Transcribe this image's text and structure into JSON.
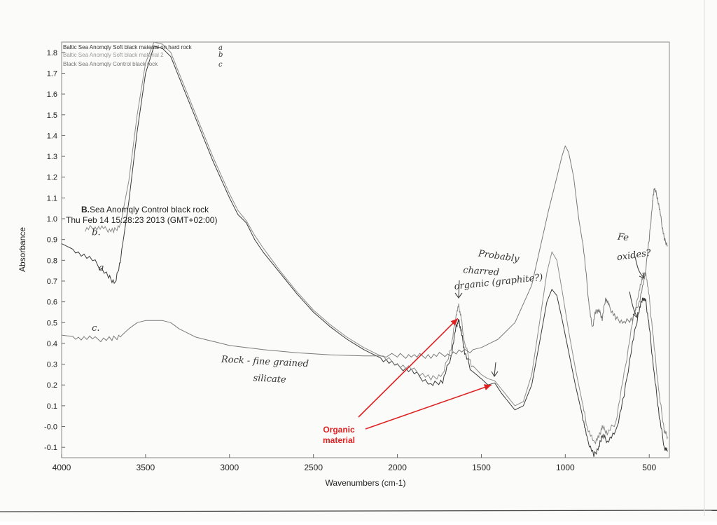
{
  "chart_data": {
    "type": "line",
    "xlabel": "Wavenumbers (cm-1)",
    "ylabel": "Absorbance",
    "xlim": [
      4000,
      380
    ],
    "ylim": [
      -0.15,
      1.85
    ],
    "x_reversed": true,
    "xticks": [
      4000,
      3500,
      3000,
      2500,
      2000,
      1500,
      1000,
      500
    ],
    "yticks": [
      -0.1,
      -0.0,
      0.1,
      0.2,
      0.3,
      0.4,
      0.5,
      0.6,
      0.7,
      0.8,
      0.9,
      1.0,
      1.1,
      1.2,
      1.3,
      1.4,
      1.5,
      1.6,
      1.7,
      1.8
    ],
    "grid": false,
    "legend_position": "top-left",
    "legend": [
      {
        "text": "Baltic Sea Anomqly Soft black material on hard rock",
        "mark": "a",
        "color": "#333333"
      },
      {
        "text": "Baltic Sea Anomqly Soft black material 2",
        "mark": "b",
        "color": "#9a9a9a"
      },
      {
        "text": "Black Sea Anomqly Control black rock",
        "mark": "c",
        "color": "#6f6f6f"
      }
    ],
    "info_title_prefix": "B.",
    "info_title_rest": "Sea Anomqly Control black rock",
    "info_timestamp": "Thu Feb 14 15:28:23 2013 (GMT+02:00)",
    "series": [
      {
        "mark": "a",
        "color": "#3a3a3a",
        "points": [
          [
            4000,
            0.88
          ],
          [
            3900,
            0.84
          ],
          [
            3800,
            0.79
          ],
          [
            3720,
            0.72
          ],
          [
            3680,
            0.69
          ],
          [
            3650,
            0.8
          ],
          [
            3600,
            1.08
          ],
          [
            3550,
            1.42
          ],
          [
            3500,
            1.7
          ],
          [
            3450,
            1.83
          ],
          [
            3400,
            1.82
          ],
          [
            3350,
            1.78
          ],
          [
            3300,
            1.68
          ],
          [
            3200,
            1.48
          ],
          [
            3100,
            1.28
          ],
          [
            3000,
            1.1
          ],
          [
            2950,
            1.02
          ],
          [
            2900,
            0.98
          ],
          [
            2850,
            0.9
          ],
          [
            2800,
            0.84
          ],
          [
            2700,
            0.74
          ],
          [
            2600,
            0.64
          ],
          [
            2500,
            0.55
          ],
          [
            2400,
            0.48
          ],
          [
            2300,
            0.42
          ],
          [
            2200,
            0.37
          ],
          [
            2100,
            0.33
          ],
          [
            2000,
            0.29
          ],
          [
            1900,
            0.26
          ],
          [
            1800,
            0.2
          ],
          [
            1730,
            0.22
          ],
          [
            1680,
            0.34
          ],
          [
            1650,
            0.48
          ],
          [
            1635,
            0.51
          ],
          [
            1620,
            0.46
          ],
          [
            1600,
            0.36
          ],
          [
            1560,
            0.27
          ],
          [
            1500,
            0.23
          ],
          [
            1460,
            0.2
          ],
          [
            1420,
            0.21
          ],
          [
            1380,
            0.16
          ],
          [
            1300,
            0.08
          ],
          [
            1250,
            0.1
          ],
          [
            1200,
            0.2
          ],
          [
            1150,
            0.42
          ],
          [
            1110,
            0.6
          ],
          [
            1080,
            0.66
          ],
          [
            1050,
            0.63
          ],
          [
            1020,
            0.52
          ],
          [
            980,
            0.36
          ],
          [
            940,
            0.2
          ],
          [
            900,
            0.06
          ],
          [
            870,
            -0.06
          ],
          [
            830,
            -0.14
          ],
          [
            800,
            -0.1
          ],
          [
            780,
            -0.04
          ],
          [
            750,
            -0.07
          ],
          [
            700,
            -0.03
          ],
          [
            650,
            0.15
          ],
          [
            600,
            0.4
          ],
          [
            560,
            0.56
          ],
          [
            540,
            0.62
          ],
          [
            520,
            0.6
          ],
          [
            500,
            0.48
          ],
          [
            470,
            0.25
          ],
          [
            440,
            0.05
          ],
          [
            410,
            -0.1
          ],
          [
            390,
            -0.12
          ]
        ]
      },
      {
        "mark": "b",
        "color": "#8c8c8c",
        "points": [
          [
            3860,
            0.95
          ],
          [
            3800,
            0.96
          ],
          [
            3740,
            0.95
          ],
          [
            3690,
            0.94
          ],
          [
            3650,
            0.97
          ],
          [
            3600,
            1.18
          ],
          [
            3550,
            1.5
          ],
          [
            3500,
            1.75
          ],
          [
            3450,
            1.85
          ],
          [
            3400,
            1.84
          ],
          [
            3350,
            1.8
          ],
          [
            3300,
            1.7
          ],
          [
            3200,
            1.5
          ],
          [
            3100,
            1.3
          ],
          [
            3000,
            1.12
          ],
          [
            2950,
            1.04
          ],
          [
            2900,
            0.99
          ],
          [
            2850,
            0.92
          ],
          [
            2800,
            0.86
          ],
          [
            2700,
            0.75
          ],
          [
            2600,
            0.65
          ],
          [
            2500,
            0.56
          ],
          [
            2400,
            0.49
          ],
          [
            2300,
            0.43
          ],
          [
            2200,
            0.38
          ],
          [
            2100,
            0.34
          ],
          [
            2000,
            0.3
          ],
          [
            1900,
            0.27
          ],
          [
            1800,
            0.23
          ],
          [
            1730,
            0.25
          ],
          [
            1680,
            0.38
          ],
          [
            1650,
            0.54
          ],
          [
            1635,
            0.58
          ],
          [
            1620,
            0.52
          ],
          [
            1600,
            0.4
          ],
          [
            1560,
            0.3
          ],
          [
            1500,
            0.25
          ],
          [
            1460,
            0.23
          ],
          [
            1420,
            0.22
          ],
          [
            1380,
            0.18
          ],
          [
            1300,
            0.1
          ],
          [
            1250,
            0.12
          ],
          [
            1200,
            0.25
          ],
          [
            1150,
            0.52
          ],
          [
            1110,
            0.74
          ],
          [
            1080,
            0.84
          ],
          [
            1050,
            0.8
          ],
          [
            1020,
            0.66
          ],
          [
            980,
            0.46
          ],
          [
            940,
            0.28
          ],
          [
            900,
            0.12
          ],
          [
            870,
            0.0
          ],
          [
            830,
            -0.08
          ],
          [
            800,
            -0.05
          ],
          [
            780,
            0.0
          ],
          [
            750,
            -0.03
          ],
          [
            700,
            0.02
          ],
          [
            650,
            0.25
          ],
          [
            600,
            0.5
          ],
          [
            560,
            0.65
          ],
          [
            540,
            0.72
          ],
          [
            520,
            0.74
          ],
          [
            500,
            0.62
          ],
          [
            470,
            0.38
          ],
          [
            440,
            0.15
          ],
          [
            410,
            -0.02
          ],
          [
            390,
            -0.05
          ]
        ]
      },
      {
        "mark": "c",
        "color": "#7a7a7a",
        "points": [
          [
            4000,
            0.44
          ],
          [
            3900,
            0.43
          ],
          [
            3800,
            0.42
          ],
          [
            3700,
            0.42
          ],
          [
            3640,
            0.44
          ],
          [
            3600,
            0.47
          ],
          [
            3550,
            0.5
          ],
          [
            3500,
            0.51
          ],
          [
            3400,
            0.51
          ],
          [
            3350,
            0.5
          ],
          [
            3300,
            0.47
          ],
          [
            3200,
            0.43
          ],
          [
            3100,
            0.41
          ],
          [
            3000,
            0.39
          ],
          [
            2800,
            0.37
          ],
          [
            2600,
            0.355
          ],
          [
            2400,
            0.345
          ],
          [
            2200,
            0.34
          ],
          [
            2000,
            0.34
          ],
          [
            1900,
            0.34
          ],
          [
            1800,
            0.34
          ],
          [
            1700,
            0.35
          ],
          [
            1600,
            0.36
          ],
          [
            1500,
            0.38
          ],
          [
            1400,
            0.42
          ],
          [
            1300,
            0.5
          ],
          [
            1200,
            0.68
          ],
          [
            1150,
            0.86
          ],
          [
            1100,
            1.04
          ],
          [
            1050,
            1.2
          ],
          [
            1020,
            1.3
          ],
          [
            1000,
            1.35
          ],
          [
            980,
            1.32
          ],
          [
            950,
            1.2
          ],
          [
            920,
            1.0
          ],
          [
            890,
            0.85
          ],
          [
            860,
            0.6
          ],
          [
            840,
            0.47
          ],
          [
            820,
            0.55
          ],
          [
            800,
            0.56
          ],
          [
            780,
            0.52
          ],
          [
            760,
            0.62
          ],
          [
            740,
            0.58
          ],
          [
            700,
            0.52
          ],
          [
            650,
            0.5
          ],
          [
            600,
            0.52
          ],
          [
            560,
            0.6
          ],
          [
            530,
            0.7
          ],
          [
            500,
            0.9
          ],
          [
            480,
            1.08
          ],
          [
            470,
            1.15
          ],
          [
            450,
            1.1
          ],
          [
            430,
            1.0
          ],
          [
            410,
            0.9
          ],
          [
            390,
            0.87
          ]
        ]
      }
    ],
    "annotations": [
      {
        "text": "b.",
        "x": 3820,
        "y": 0.92
      },
      {
        "text": "a",
        "x": 3780,
        "y": 0.75
      },
      {
        "text": "c.",
        "x": 3820,
        "y": 0.46
      },
      {
        "text": "Rock - fine grained",
        "x": 3050,
        "y": 0.31
      },
      {
        "text": "silicate",
        "x": 2860,
        "y": 0.22
      },
      {
        "text": "Probably",
        "x": 1520,
        "y": 0.82
      },
      {
        "text": "charred",
        "x": 1610,
        "y": 0.74
      },
      {
        "text": "organic (graphite?)",
        "x": 1660,
        "y": 0.66
      },
      {
        "text": "Fe",
        "x": 690,
        "y": 0.9
      },
      {
        "text": "oxides?",
        "x": 690,
        "y": 0.8
      }
    ],
    "organic_label": [
      "Organic",
      "material"
    ],
    "organic_arrow_targets": [
      [
        1640,
        0.52
      ],
      [
        1440,
        0.2
      ]
    ]
  }
}
